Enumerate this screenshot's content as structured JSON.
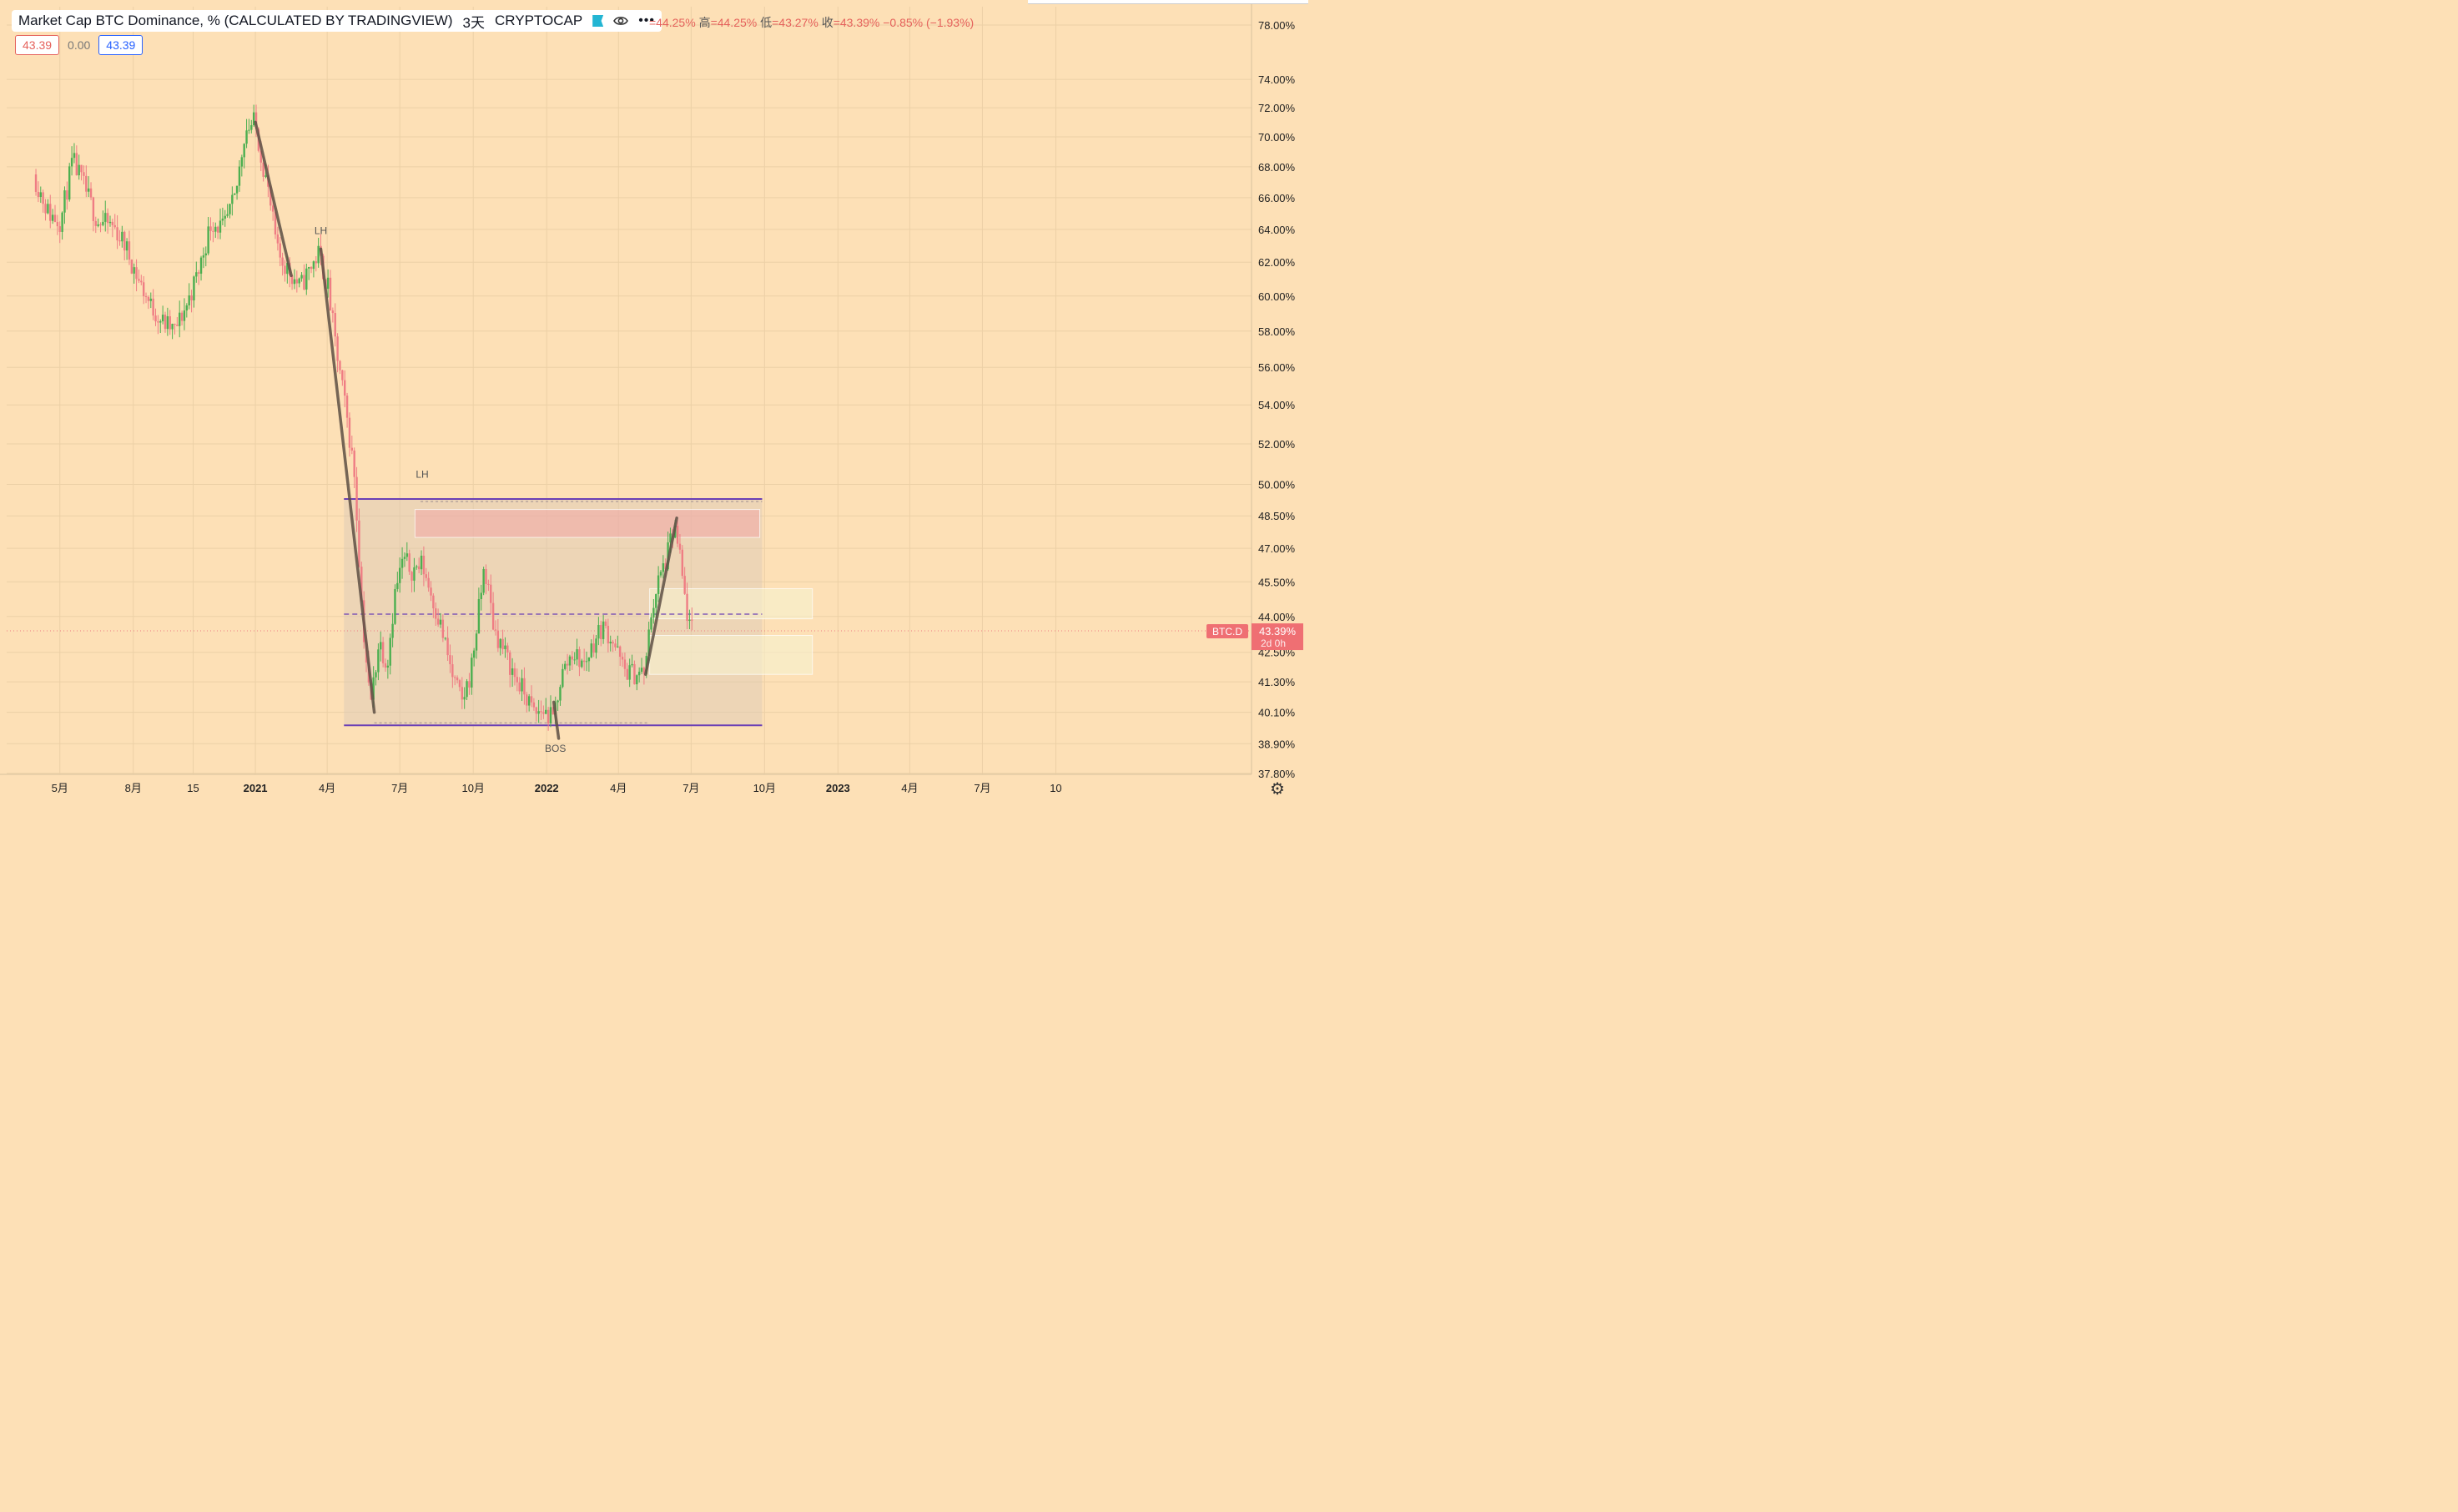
{
  "legend": {
    "title": "Market Cap BTC Dominance, % (CALCULATED BY TRADINGVIEW)",
    "interval": "3天",
    "exchange": "CRYPTOCAP",
    "open": "=44.25%",
    "high_label": "高",
    "high": "=44.25%",
    "low_label": "低",
    "low": "=43.27%",
    "close_label": "收",
    "close": "=43.39%",
    "change": "−0.85% (−1.93%)",
    "icons": [
      "flag-icon",
      "eye-icon",
      "more-icon"
    ]
  },
  "values": {
    "left": "43.39",
    "mid": "0.00",
    "right": "43.39"
  },
  "colors": {
    "background": "#fde0b6",
    "up": "#4caf50",
    "down": "#ef7d84",
    "trend": "#5d4f44",
    "range": "#6a3fb5",
    "price_tag": "#ef6f73"
  },
  "chart_data": {
    "type": "candlestick",
    "symbol": "BTC.D",
    "y_scale": "log",
    "y_ticks": [
      "78.00%",
      "74.00%",
      "72.00%",
      "70.00%",
      "68.00%",
      "66.00%",
      "64.00%",
      "62.00%",
      "60.00%",
      "58.00%",
      "56.00%",
      "54.00%",
      "52.00%",
      "50.00%",
      "48.50%",
      "47.00%",
      "45.50%",
      "44.00%",
      "42.50%",
      "41.30%",
      "40.10%",
      "38.90%",
      "37.80%"
    ],
    "y_tick_values": [
      78,
      74,
      72,
      70,
      68,
      66,
      64,
      62,
      60,
      58,
      56,
      54,
      52,
      50,
      48.5,
      47,
      45.5,
      44,
      42.5,
      41.3,
      40.1,
      38.9,
      37.8
    ],
    "x_ticks": [
      {
        "label": "5月",
        "date": "2020-05-01",
        "bold": false
      },
      {
        "label": "8月",
        "date": "2020-08-01",
        "bold": false
      },
      {
        "label": "15",
        "date": "2020-10-15",
        "bold": false
      },
      {
        "label": "2021",
        "date": "2021-01-01",
        "bold": true
      },
      {
        "label": "4月",
        "date": "2021-04-01",
        "bold": false
      },
      {
        "label": "7月",
        "date": "2021-07-01",
        "bold": false
      },
      {
        "label": "10月",
        "date": "2021-10-01",
        "bold": false
      },
      {
        "label": "2022",
        "date": "2022-01-01",
        "bold": true
      },
      {
        "label": "4月",
        "date": "2022-04-01",
        "bold": false
      },
      {
        "label": "7月",
        "date": "2022-07-01",
        "bold": false
      },
      {
        "label": "10月",
        "date": "2022-10-01",
        "bold": false
      },
      {
        "label": "2023",
        "date": "2023-01-01",
        "bold": true
      },
      {
        "label": "4月",
        "date": "2023-04-01",
        "bold": false
      },
      {
        "label": "7月",
        "date": "2023-07-01",
        "bold": false
      },
      {
        "label": "10",
        "date": "2023-10-01",
        "bold": false
      }
    ],
    "path": [
      [
        "2020-04-01",
        67.5
      ],
      [
        "2020-04-20",
        65.0
      ],
      [
        "2020-05-05",
        64.5
      ],
      [
        "2020-05-20",
        68.4
      ],
      [
        "2020-06-05",
        66.5
      ],
      [
        "2020-06-20",
        64.5
      ],
      [
        "2020-07-10",
        64.2
      ],
      [
        "2020-07-25",
        63.0
      ],
      [
        "2020-08-10",
        61.0
      ],
      [
        "2020-08-25",
        59.5
      ],
      [
        "2020-09-10",
        58.5
      ],
      [
        "2020-09-25",
        58.0
      ],
      [
        "2020-10-10",
        59.5
      ],
      [
        "2020-10-25",
        61.5
      ],
      [
        "2020-11-10",
        64.5
      ],
      [
        "2020-11-25",
        64.0
      ],
      [
        "2020-12-10",
        66.0
      ],
      [
        "2020-12-22",
        70.5
      ],
      [
        "2021-01-03",
        71.0
      ],
      [
        "2021-01-18",
        67.0
      ],
      [
        "2021-02-01",
        62.5
      ],
      [
        "2021-02-15",
        61.5
      ],
      [
        "2021-03-01",
        60.5
      ],
      [
        "2021-03-12",
        61.5
      ],
      [
        "2021-03-24",
        62.5
      ],
      [
        "2021-04-05",
        60.5
      ],
      [
        "2021-04-15",
        57.0
      ],
      [
        "2021-04-28",
        53.5
      ],
      [
        "2021-05-08",
        50.5
      ],
      [
        "2021-05-18",
        44.0
      ],
      [
        "2021-05-28",
        40.3
      ],
      [
        "2021-06-08",
        43.0
      ],
      [
        "2021-06-18",
        42.0
      ],
      [
        "2021-06-28",
        45.0
      ],
      [
        "2021-07-08",
        46.5
      ],
      [
        "2021-07-20",
        46.0
      ],
      [
        "2021-08-01",
        46.3
      ],
      [
        "2021-08-12",
        45.0
      ],
      [
        "2021-08-25",
        43.5
      ],
      [
        "2021-09-08",
        41.5
      ],
      [
        "2021-09-20",
        40.5
      ],
      [
        "2021-10-01",
        41.7
      ],
      [
        "2021-10-10",
        44.0
      ],
      [
        "2021-10-18",
        46.2
      ],
      [
        "2021-10-30",
        43.5
      ],
      [
        "2021-11-12",
        42.5
      ],
      [
        "2021-11-25",
        41.5
      ],
      [
        "2021-12-08",
        40.8
      ],
      [
        "2021-12-20",
        40.0
      ],
      [
        "2021-12-30",
        40.2
      ],
      [
        "2022-01-12",
        39.8
      ],
      [
        "2022-01-22",
        41.5
      ],
      [
        "2022-02-05",
        42.5
      ],
      [
        "2022-02-20",
        42.0
      ],
      [
        "2022-03-05",
        43.0
      ],
      [
        "2022-03-15",
        43.6
      ],
      [
        "2022-03-28",
        43.0
      ],
      [
        "2022-04-10",
        41.8
      ],
      [
        "2022-04-25",
        41.6
      ],
      [
        "2022-05-08",
        41.7
      ],
      [
        "2022-05-14",
        44.0
      ],
      [
        "2022-05-24",
        45.5
      ],
      [
        "2022-06-03",
        46.5
      ],
      [
        "2022-06-13",
        48.0
      ],
      [
        "2022-06-20",
        46.5
      ],
      [
        "2022-06-27",
        44.5
      ],
      [
        "2022-07-03",
        43.39
      ]
    ],
    "trendlines": [
      [
        [
          "2021-01-01",
          71.0
        ],
        [
          "2021-02-15",
          61.2
        ]
      ],
      [
        [
          "2021-03-24",
          62.8
        ],
        [
          "2021-05-30",
          40.1
        ]
      ],
      [
        [
          "2022-01-10",
          40.5
        ],
        [
          "2022-01-16",
          39.1
        ]
      ],
      [
        [
          "2022-05-05",
          41.6
        ],
        [
          "2022-06-13",
          48.4
        ]
      ]
    ],
    "range": {
      "top": 49.3,
      "bottom": 39.6,
      "mid": 44.1,
      "start": "2021-04-22",
      "end": "2022-09-28"
    },
    "zones": [
      {
        "top": 48.8,
        "bottom": 47.5,
        "start": "2021-07-20",
        "end": "2022-09-25",
        "kind": "resistance"
      },
      {
        "top": 45.2,
        "bottom": 43.9,
        "start": "2022-05-10",
        "end": "2022-11-30",
        "kind": "supply"
      },
      {
        "top": 43.2,
        "bottom": 41.6,
        "start": "2022-05-10",
        "end": "2022-11-30",
        "kind": "demand"
      }
    ],
    "annotations": [
      {
        "text": "LH",
        "date": "2021-03-24",
        "value": 62.8
      },
      {
        "text": "LH",
        "date": "2021-07-29",
        "value": 49.6
      },
      {
        "text": "BOS",
        "date": "2022-01-12",
        "value": 39.1
      }
    ],
    "last_value": 43.39,
    "last_label": "43.39%",
    "countdown": "2d 0h"
  }
}
